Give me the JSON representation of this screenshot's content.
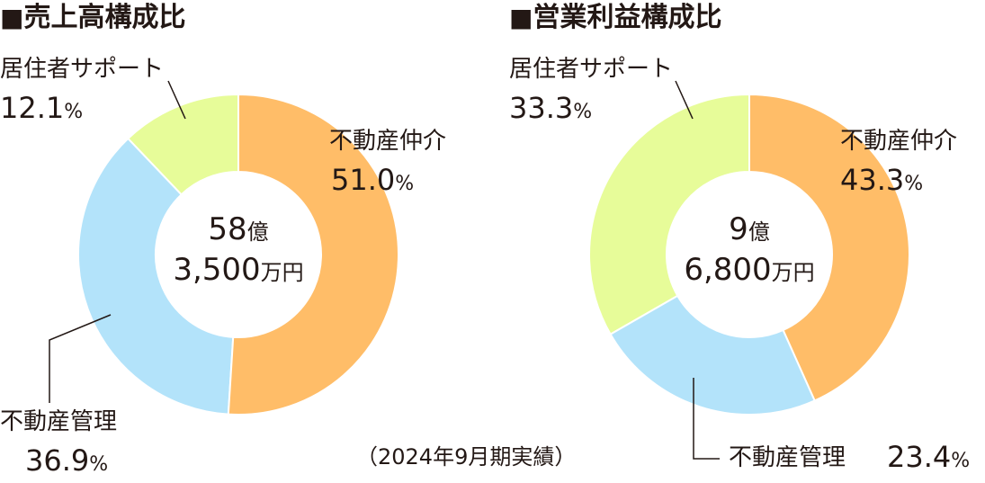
{
  "chart_data": [
    {
      "type": "pie",
      "title_marker": "■",
      "title": "売上高構成比",
      "center_value": "58",
      "center_unit": "億",
      "center_value2": "3,500",
      "center_unit2": "万円",
      "slices": [
        {
          "label": "不動産仲介",
          "value": 51.0,
          "display": "51.0",
          "color": "#FFBD68"
        },
        {
          "label": "不動産管理",
          "value": 36.9,
          "display": "36.9",
          "color": "#B3E3FA"
        },
        {
          "label": "居住者サポート",
          "value": 12.1,
          "display": "12.1",
          "color": "#E7FC99"
        }
      ],
      "percent_unit": "%"
    },
    {
      "type": "pie",
      "title_marker": "■",
      "title": "営業利益構成比",
      "center_value": "9",
      "center_unit": "億",
      "center_value2": "6,800",
      "center_unit2": "万円",
      "slices": [
        {
          "label": "不動産仲介",
          "value": 43.3,
          "display": "43.3",
          "color": "#FFBD68"
        },
        {
          "label": "不動産管理",
          "value": 23.4,
          "display": "23.4",
          "color": "#B3E3FA"
        },
        {
          "label": "居住者サポート",
          "value": 33.3,
          "display": "33.3",
          "color": "#E7FC99"
        }
      ],
      "percent_unit": "%"
    }
  ],
  "footnote": "（2024年9月期実績）"
}
